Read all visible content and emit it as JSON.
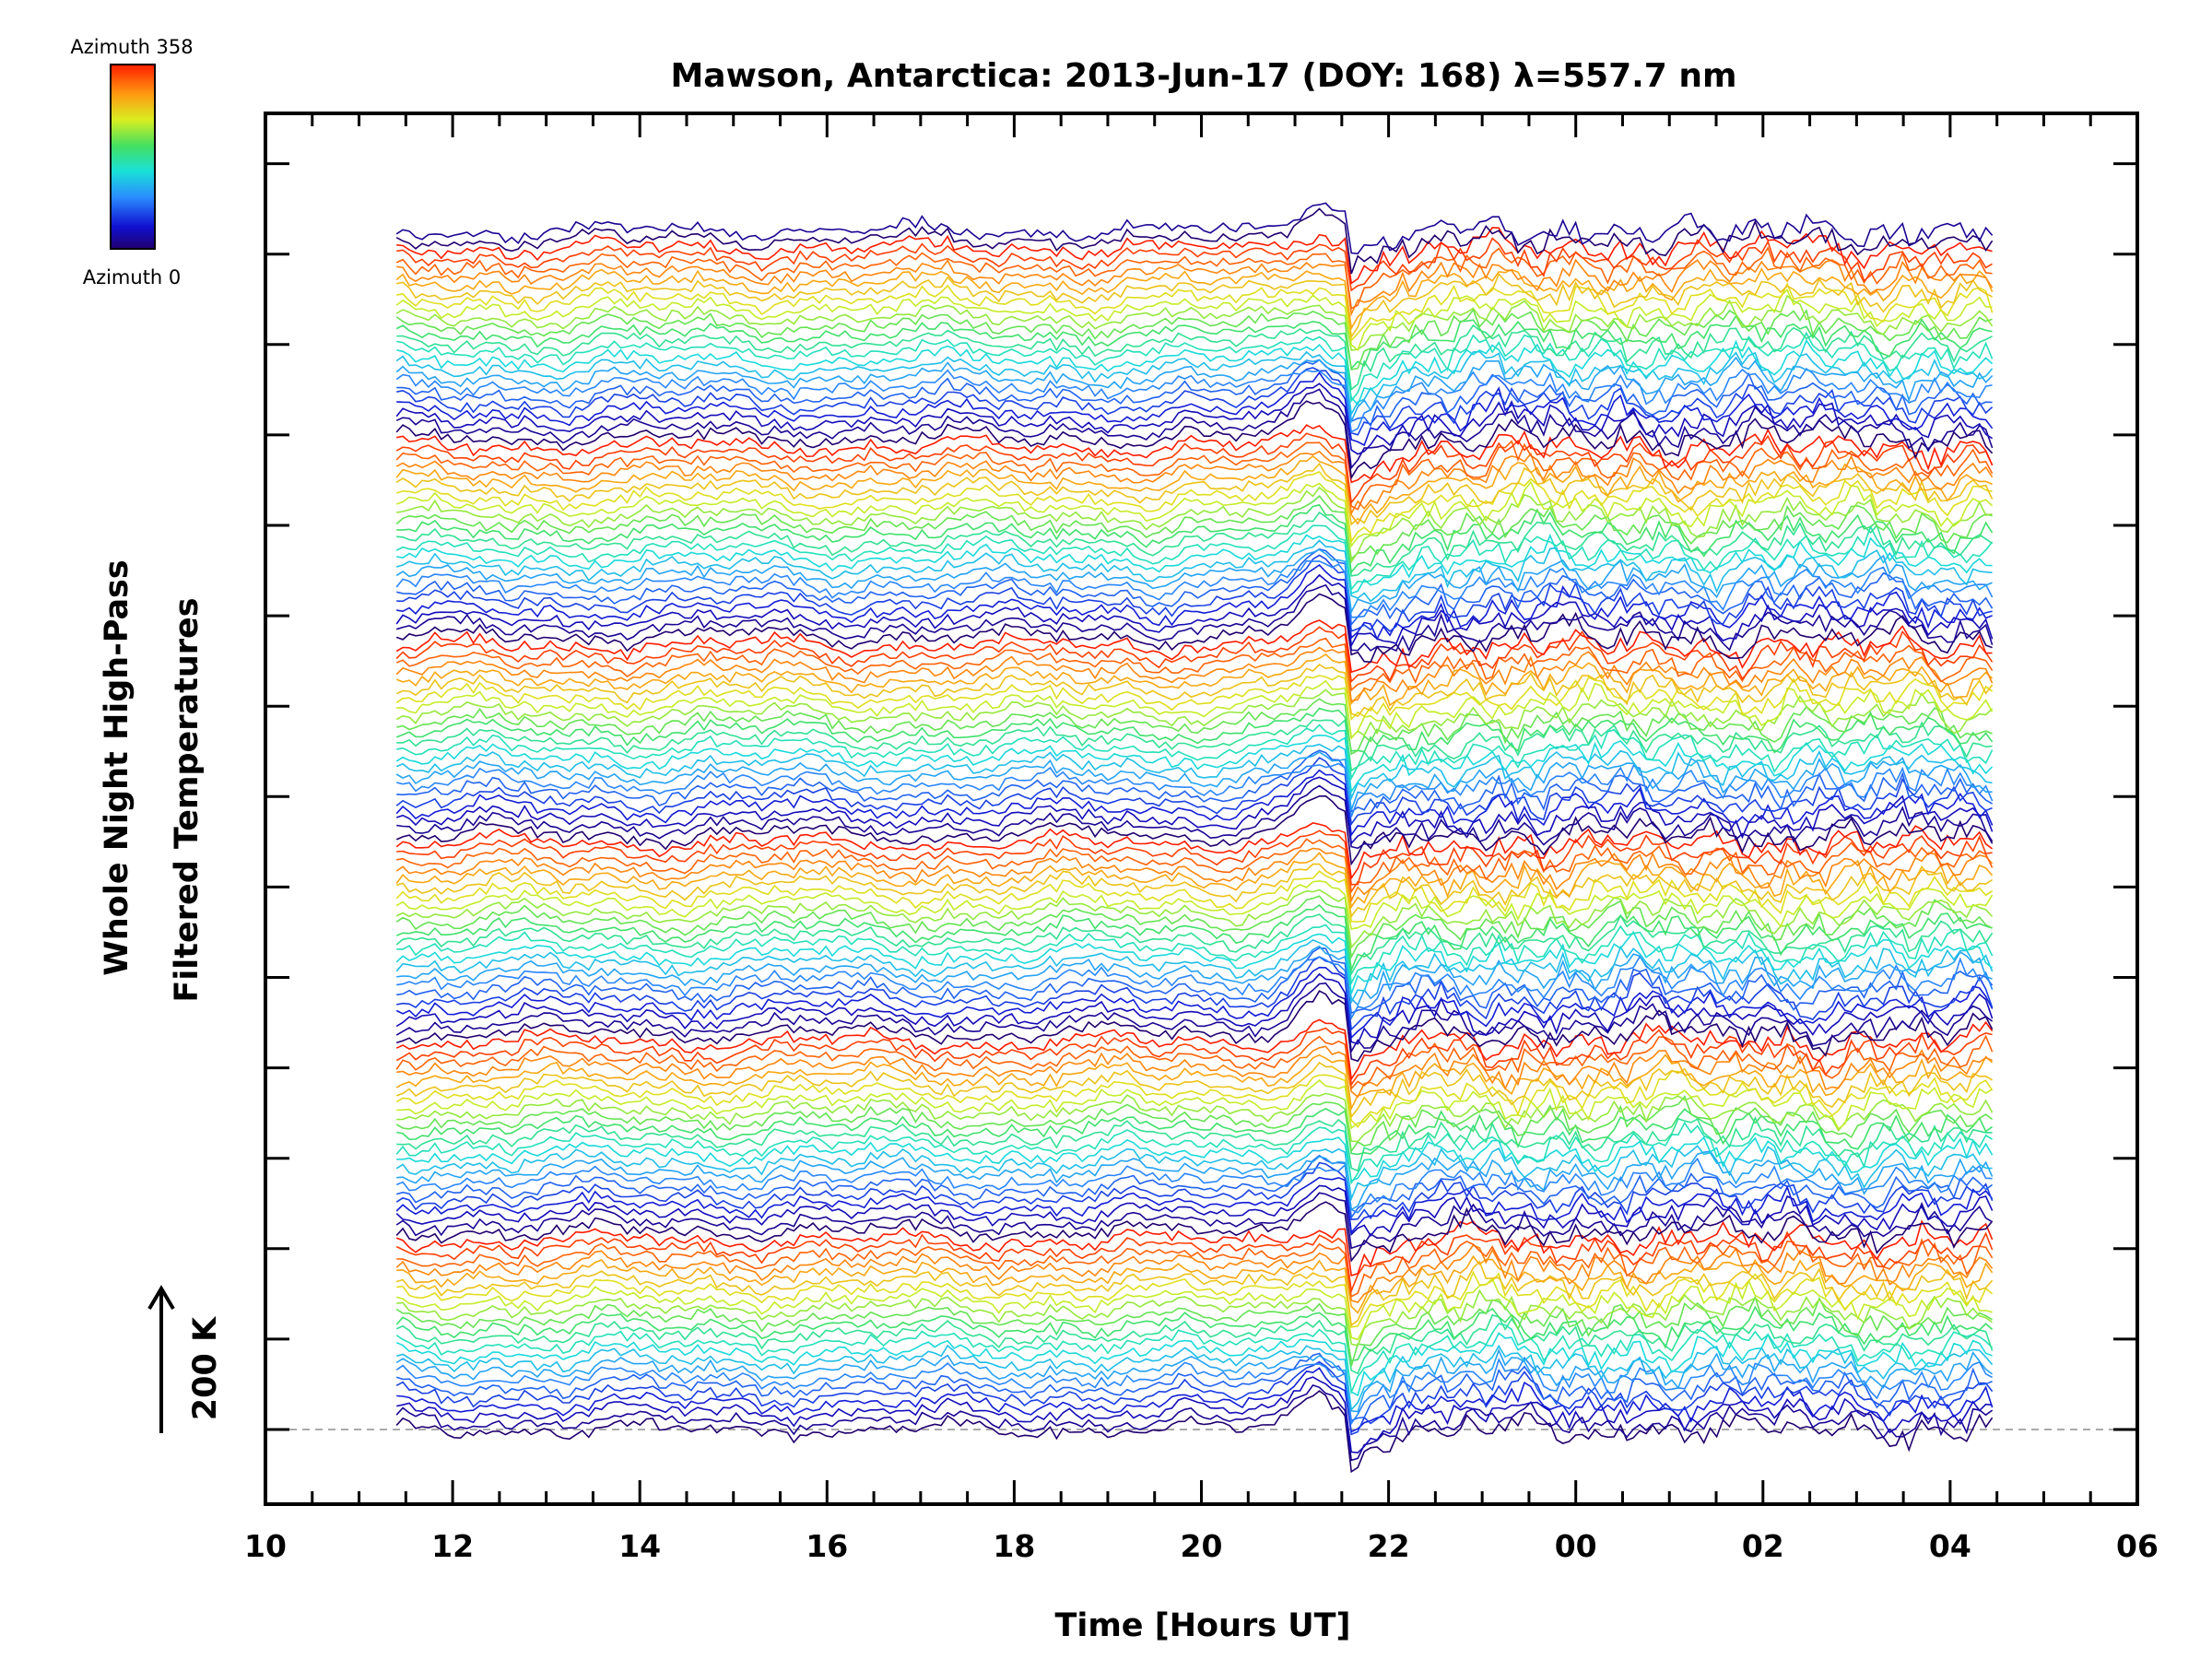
{
  "chart_data": {
    "type": "line",
    "title": "Mawson, Antarctica: 2013-Jun-17 (DOY: 168) λ=557.7 nm",
    "xlabel": "Time [Hours UT]",
    "ylabel_lines": [
      "Whole Night High-Pass",
      "Filtered Temperatures"
    ],
    "x_tick_labels": [
      "10",
      "12",
      "14",
      "16",
      "18",
      "20",
      "22",
      "00",
      "02",
      "04",
      "06"
    ],
    "xlim": [
      10,
      30
    ],
    "x_data_range": [
      11.4,
      28.45
    ],
    "scale_bar": {
      "label": "200 K",
      "value_k": 200
    },
    "colorbar": {
      "top_label": "Azimuth  358",
      "bottom_label": "Azimuth  0",
      "colormap": "rainbow",
      "range": [
        0,
        358
      ]
    },
    "n_traces": 140,
    "step_time_ut": 21.55,
    "step_amplitude_k": -120,
    "event_peak_time_ut": 21.3,
    "grid": false,
    "legend": "colorbar top-left"
  }
}
